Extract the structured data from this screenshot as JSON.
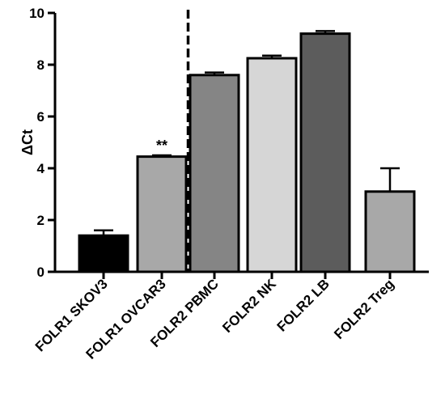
{
  "chart_data": {
    "type": "bar",
    "title": "",
    "xlabel": "",
    "ylabel": "ΔCt",
    "ylim": [
      0,
      10
    ],
    "yticks": [
      0,
      2,
      4,
      6,
      8,
      10
    ],
    "grid": false,
    "categories": [
      "FOLR1 SKOV3",
      "FOLR1 OVCAR3",
      "FOLR2 PBMC",
      "FOLR2 NK",
      "FOLR2 LB",
      "FOLR2 Treg"
    ],
    "values": [
      1.4,
      4.45,
      7.6,
      8.25,
      9.2,
      3.1
    ],
    "errors": [
      0.2,
      0.05,
      0.1,
      0.1,
      0.1,
      0.9
    ],
    "bar_colors": [
      "#000000",
      "#a8a8a8",
      "#858585",
      "#d6d6d6",
      "#5c5c5c",
      "#a8a8a8"
    ],
    "annotations": [
      {
        "category": "FOLR1 OVCAR3",
        "text": "**"
      }
    ],
    "separator_after_category": "FOLR1 OVCAR3"
  }
}
